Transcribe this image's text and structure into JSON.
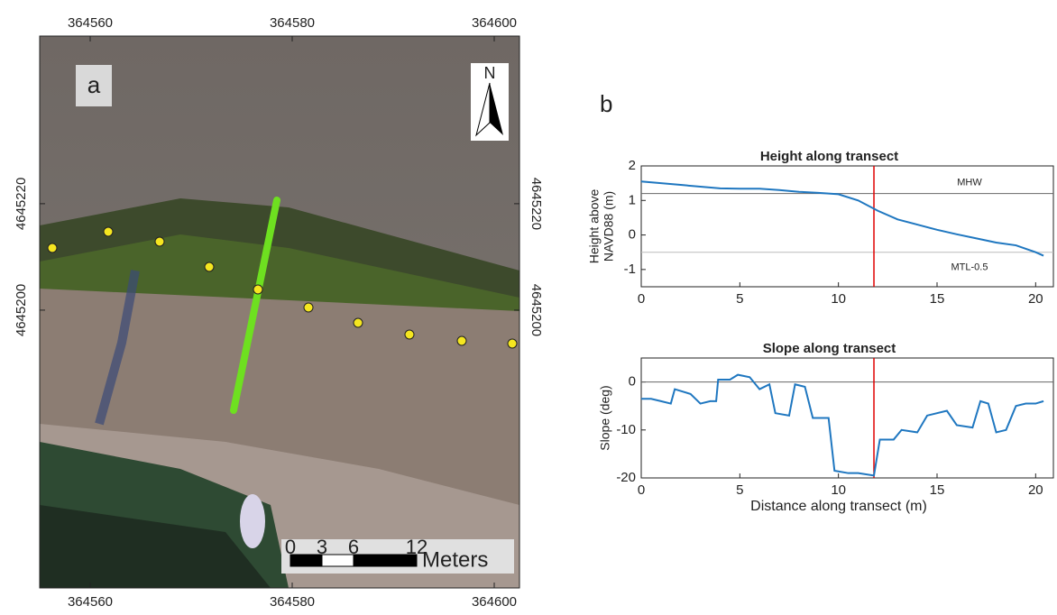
{
  "map": {
    "label": "a",
    "north": "N",
    "xlim": [
      364555,
      364602.5
    ],
    "ylim": [
      4645147.8,
      4645251.5
    ],
    "xticks": [
      364560,
      364580,
      364600
    ],
    "yticks": [
      4645200,
      4645220
    ],
    "scale": {
      "ticks": [
        0,
        3,
        6,
        12
      ],
      "unit": "Meters"
    }
  },
  "panel_label": "b",
  "chart_data": [
    {
      "type": "line",
      "title": "Height along transect",
      "ylabel": [
        "Height above",
        "NAVD88 (m)"
      ],
      "x": [
        0,
        1,
        2,
        3,
        4,
        5,
        6,
        7,
        8,
        9,
        10,
        11,
        12,
        13,
        14,
        15,
        16,
        17,
        18,
        19,
        20,
        20.4
      ],
      "series": [
        {
          "color": "#1f77c0",
          "values": [
            1.55,
            1.5,
            1.45,
            1.4,
            1.35,
            1.34,
            1.34,
            1.3,
            1.25,
            1.22,
            1.18,
            1.0,
            0.7,
            0.45,
            0.3,
            0.15,
            0.02,
            -0.1,
            -0.22,
            -0.3,
            -0.5,
            -0.6
          ]
        }
      ],
      "xlim": [
        0,
        20.9
      ],
      "ylim": [
        -1.5,
        2
      ],
      "xticks": [
        0,
        5,
        10,
        15,
        20
      ],
      "yticks": [
        -1,
        0,
        1,
        2
      ],
      "reference_lines": [
        {
          "axis": "y",
          "value": 1.2,
          "label": "MHW",
          "color": "#666666"
        },
        {
          "axis": "y",
          "value": -0.5,
          "label": "MTL-0.5",
          "color": "#bbbbbb"
        },
        {
          "axis": "x",
          "value": 11.8,
          "color": "#e00000"
        }
      ]
    },
    {
      "type": "line",
      "title": "Slope along transect",
      "ylabel": [
        "Slope (deg)"
      ],
      "xlabel": "Distance along transect (m)",
      "x": [
        0,
        0.5,
        1,
        1.5,
        1.7,
        2.5,
        3,
        3.5,
        3.8,
        3.9,
        4.5,
        4.9,
        5.5,
        6,
        6.5,
        6.8,
        7.5,
        7.8,
        8.3,
        8.7,
        9.5,
        9.8,
        10.5,
        11,
        11.8,
        12.1,
        12.8,
        13.2,
        14,
        14.5,
        15.5,
        16,
        16.8,
        17.2,
        17.6,
        18,
        18.5,
        19,
        19.5,
        20,
        20.4
      ],
      "series": [
        {
          "color": "#1f77c0",
          "values": [
            -3.5,
            -3.5,
            -4,
            -4.5,
            -1.5,
            -2.5,
            -4.5,
            -4,
            -4,
            0.5,
            0.5,
            1.5,
            1,
            -1.5,
            -0.5,
            -6.5,
            -7,
            -0.5,
            -1,
            -7.5,
            -7.5,
            -18.5,
            -19,
            -19,
            -19.5,
            -12,
            -12,
            -10,
            -10.5,
            -7,
            -6,
            -9,
            -9.5,
            -4,
            -4.5,
            -10.5,
            -10,
            -5,
            -4.5,
            -4.5,
            -4
          ]
        }
      ],
      "xlim": [
        0,
        20.9
      ],
      "ylim": [
        -20,
        5
      ],
      "xticks": [
        0,
        5,
        10,
        15,
        20
      ],
      "yticks": [
        -20,
        -10,
        0
      ],
      "reference_lines": [
        {
          "axis": "y",
          "value": 0,
          "color": "#666666"
        },
        {
          "axis": "x",
          "value": 11.8,
          "color": "#e00000"
        }
      ]
    }
  ]
}
